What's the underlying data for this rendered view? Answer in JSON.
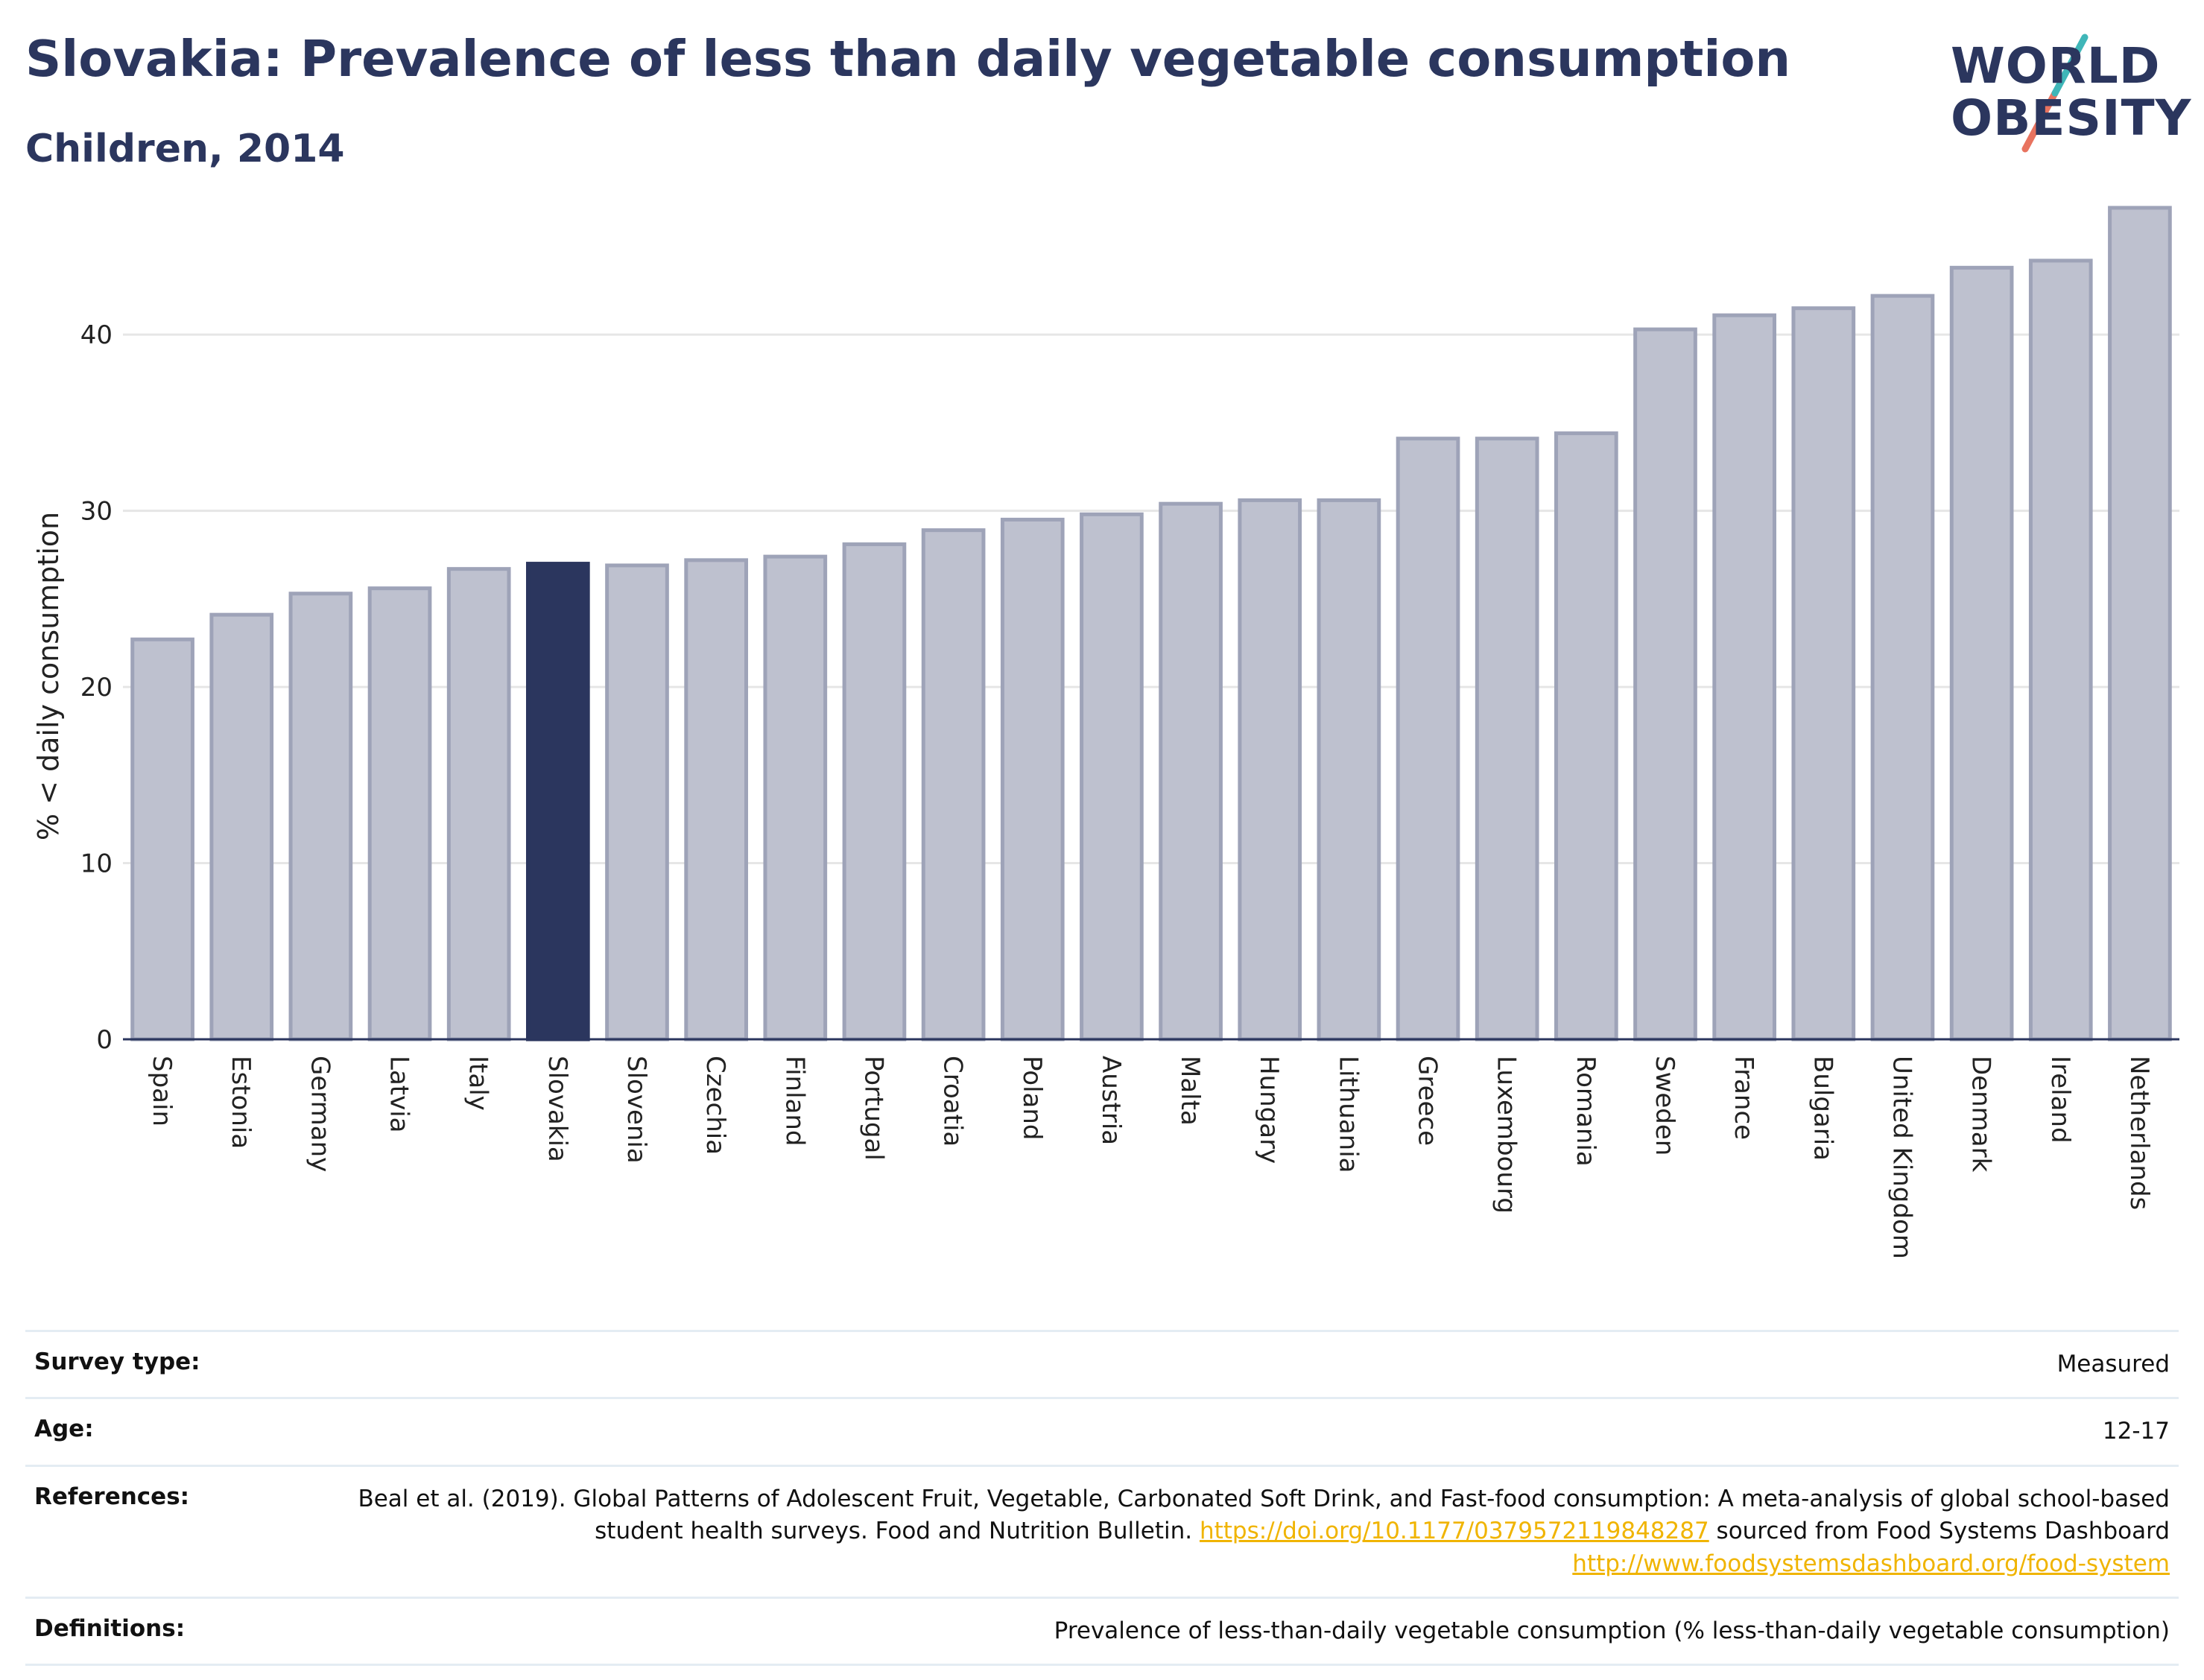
{
  "header": {
    "title": "Slovakia: Prevalence of less than daily vegetable consumption",
    "subtitle": "Children, 2014"
  },
  "logo": {
    "line1": "WORLD",
    "line2": "OBESITY"
  },
  "colors": {
    "highlight": "#2b365e",
    "bar": "#bec1cf",
    "bar_edge": "#9ea3b8",
    "grid": "#e6e6e6",
    "link": "#f0b400"
  },
  "chart_data": {
    "type": "bar",
    "ylabel": "% < daily consumption",
    "ylim": [
      0,
      48
    ],
    "yticks": [
      0,
      10,
      20,
      30,
      40
    ],
    "highlight": "Slovakia",
    "categories": [
      "Spain",
      "Estonia",
      "Germany",
      "Latvia",
      "Italy",
      "Slovakia",
      "Slovenia",
      "Czechia",
      "Finland",
      "Portugal",
      "Croatia",
      "Poland",
      "Austria",
      "Malta",
      "Hungary",
      "Lithuania",
      "Greece",
      "Luxembourg",
      "Romania",
      "Sweden",
      "France",
      "Bulgaria",
      "United Kingdom",
      "Denmark",
      "Ireland",
      "Netherlands"
    ],
    "values": [
      22.7,
      24.1,
      25.3,
      25.6,
      26.7,
      27.0,
      26.9,
      27.2,
      27.4,
      28.1,
      28.9,
      29.5,
      29.8,
      30.4,
      30.6,
      30.6,
      34.1,
      34.1,
      34.4,
      40.3,
      41.1,
      41.5,
      42.2,
      43.8,
      44.2,
      47.2
    ],
    "grid": true
  },
  "meta": [
    {
      "key": "Survey type:",
      "value": "Measured"
    },
    {
      "key": "Age:",
      "value": "12-17"
    },
    {
      "key": "References:",
      "text1": "Beal et al. (2019). Global Patterns of Adolescent Fruit, Vegetable, Carbonated Soft Drink, and Fast-food consumption: A meta-analysis of global school-based student health surveys. Food and Nutrition Bulletin.",
      "link1": "https://doi.org/10.1177/0379572119848287",
      "text2": "sourced from Food Systems Dashboard",
      "link2": "http://www.foodsystemsdashboard.org/food-system"
    },
    {
      "key": "Definitions:",
      "value": "Prevalence of less-than-daily vegetable consumption (% less-than-daily vegetable consumption)"
    }
  ]
}
